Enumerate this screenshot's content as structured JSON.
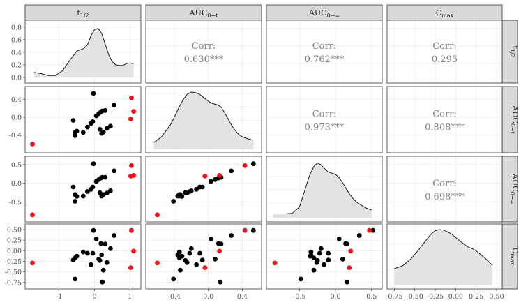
{
  "chart_data": {
    "type": "scatter-matrix",
    "variables": [
      {
        "key": "t_half",
        "label_main": "t",
        "label_sub": "1/2"
      },
      {
        "key": "auc_0_t",
        "label_main": "AUC",
        "label_sub": "0−t"
      },
      {
        "key": "auc_0_inf",
        "label_main": "AUC",
        "label_sub": "0−∞"
      },
      {
        "key": "cmax",
        "label_main": "C",
        "label_sub": "max"
      }
    ],
    "correlations": [
      {
        "row": 0,
        "col": 1,
        "label": "Corr:",
        "value": "0.630***"
      },
      {
        "row": 0,
        "col": 2,
        "label": "Corr:",
        "value": "0.762***"
      },
      {
        "row": 0,
        "col": 3,
        "label": "Corr:",
        "value": "0.295"
      },
      {
        "row": 1,
        "col": 2,
        "label": "Corr:",
        "value": "0.973***"
      },
      {
        "row": 1,
        "col": 3,
        "label": "Corr:",
        "value": "0.808***"
      },
      {
        "row": 2,
        "col": 3,
        "label": "Corr:",
        "value": "0.698***"
      }
    ],
    "axes": {
      "t_half": {
        "range": [
          -1.8,
          1.15
        ],
        "ticks": [
          -1,
          0,
          1
        ],
        "tick_labels": [
          "-1",
          "0",
          "1"
        ]
      },
      "auc_0_t": {
        "range": [
          -0.67,
          0.56
        ],
        "ticks": [
          -0.4,
          0,
          0.4
        ],
        "tick_labels": [
          "-0.4",
          "0.0",
          "0.4"
        ]
      },
      "auc_0_inf": {
        "range": [
          -0.88,
          0.57
        ],
        "ticks": [
          -0.5,
          0,
          0.5
        ],
        "tick_labels": [
          "-0.5",
          "0.0",
          "0.5"
        ]
      },
      "cmax": {
        "range": [
          -0.77,
          0.5
        ],
        "ticks": [
          -0.75,
          -0.5,
          -0.25,
          0,
          0.25,
          0.5
        ],
        "tick_labels": [
          "-0.75",
          "-0.50",
          "-0.25",
          "0.00",
          "0.25",
          "0.50"
        ]
      }
    },
    "density_axis": {
      "range": [
        0,
        0.82
      ],
      "ticks": [
        0,
        0.2,
        0.4,
        0.6,
        0.8
      ],
      "tick_labels": [
        "0.0",
        "0.2",
        "0.4",
        "0.6",
        "0.8"
      ]
    },
    "densities": {
      "t_half": {
        "x": [
          -1.7,
          -1.5,
          -1.3,
          -1.1,
          -0.9,
          -0.7,
          -0.5,
          -0.4,
          -0.3,
          -0.2,
          -0.1,
          0.0,
          0.1,
          0.2,
          0.3,
          0.4,
          0.5,
          0.6,
          0.7,
          0.8,
          0.9,
          1.0,
          1.1
        ],
        "y": [
          0.08,
          0.06,
          0.03,
          0.03,
          0.11,
          0.27,
          0.42,
          0.44,
          0.46,
          0.52,
          0.66,
          0.76,
          0.78,
          0.7,
          0.53,
          0.36,
          0.25,
          0.2,
          0.19,
          0.19,
          0.22,
          0.23,
          0.22
        ]
      },
      "auc_0_t": {
        "x": [
          -0.64,
          -0.55,
          -0.45,
          -0.4,
          -0.35,
          -0.3,
          -0.25,
          -0.2,
          -0.15,
          -0.1,
          -0.05,
          0.0,
          0.05,
          0.1,
          0.15,
          0.2,
          0.25,
          0.3,
          0.35,
          0.4,
          0.45,
          0.5,
          0.53
        ],
        "y": [
          0.12,
          0.22,
          0.42,
          0.56,
          0.72,
          0.86,
          0.96,
          1.0,
          0.99,
          0.96,
          0.9,
          0.84,
          0.8,
          0.78,
          0.74,
          0.62,
          0.48,
          0.36,
          0.27,
          0.22,
          0.19,
          0.17,
          0.16
        ]
      },
      "auc_0_inf": {
        "x": [
          -0.86,
          -0.78,
          -0.7,
          -0.6,
          -0.5,
          -0.42,
          -0.36,
          -0.3,
          -0.25,
          -0.2,
          -0.15,
          -0.1,
          -0.05,
          0.0,
          0.05,
          0.1,
          0.15,
          0.2,
          0.25,
          0.3,
          0.35,
          0.4,
          0.45,
          0.5
        ],
        "y": [
          0.08,
          0.08,
          0.08,
          0.09,
          0.2,
          0.52,
          0.76,
          0.92,
          0.98,
          0.95,
          0.88,
          0.82,
          0.8,
          0.78,
          0.72,
          0.63,
          0.52,
          0.42,
          0.34,
          0.28,
          0.24,
          0.2,
          0.17,
          0.15
        ]
      },
      "cmax": {
        "x": [
          -0.75,
          -0.65,
          -0.55,
          -0.45,
          -0.35,
          -0.3,
          -0.25,
          -0.2,
          -0.15,
          -0.1,
          -0.05,
          0.0,
          0.05,
          0.1,
          0.15,
          0.2,
          0.25,
          0.3,
          0.35,
          0.4,
          0.45
        ],
        "y": [
          0.3,
          0.35,
          0.47,
          0.64,
          0.83,
          0.92,
          0.98,
          1.0,
          0.99,
          0.96,
          0.92,
          0.86,
          0.8,
          0.74,
          0.69,
          0.66,
          0.62,
          0.56,
          0.5,
          0.43,
          0.36
        ]
      }
    },
    "points": [
      {
        "t_half": -1.75,
        "auc_0_t": -0.6,
        "auc_0_inf": -0.84,
        "cmax": -0.29,
        "highlight": true
      },
      {
        "t_half": 1.04,
        "auc_0_t": 0.43,
        "auc_0_inf": 0.47,
        "cmax": 0.48,
        "highlight": true
      },
      {
        "t_half": 1.1,
        "auc_0_t": 0.13,
        "auc_0_inf": 0.21,
        "cmax": -0.01,
        "highlight": true
      },
      {
        "t_half": 1.02,
        "auc_0_t": -0.04,
        "auc_0_inf": 0.19,
        "cmax": -0.4,
        "highlight": true
      },
      {
        "t_half": -0.03,
        "auc_0_t": 0.53,
        "auc_0_inf": 0.52,
        "cmax": 0.48,
        "highlight": false
      },
      {
        "t_half": 0.55,
        "auc_0_t": 0.27,
        "auc_0_inf": 0.33,
        "cmax": 0.36,
        "highlight": false
      },
      {
        "t_half": -0.55,
        "auc_0_t": -0.41,
        "auc_0_inf": -0.48,
        "cmax": -0.67,
        "highlight": false
      },
      {
        "t_half": -0.6,
        "auc_0_t": -0.07,
        "auc_0_inf": -0.1,
        "cmax": -0.22,
        "highlight": false
      },
      {
        "t_half": -0.5,
        "auc_0_t": -0.31,
        "auc_0_inf": -0.35,
        "cmax": -0.13,
        "highlight": false
      },
      {
        "t_half": -0.55,
        "auc_0_t": -0.34,
        "auc_0_inf": -0.3,
        "cmax": -0.17,
        "highlight": false
      },
      {
        "t_half": -0.32,
        "auc_0_t": -0.34,
        "auc_0_inf": -0.34,
        "cmax": -0.03,
        "highlight": false
      },
      {
        "t_half": -0.2,
        "auc_0_t": -0.22,
        "auc_0_inf": -0.22,
        "cmax": -0.06,
        "highlight": false
      },
      {
        "t_half": -0.1,
        "auc_0_t": -0.14,
        "auc_0_inf": -0.16,
        "cmax": -0.33,
        "highlight": false
      },
      {
        "t_half": -0.05,
        "auc_0_t": -0.1,
        "auc_0_inf": -0.1,
        "cmax": -0.06,
        "highlight": false
      },
      {
        "t_half": 0.05,
        "auc_0_t": 0.03,
        "auc_0_inf": 0.05,
        "cmax": 0.28,
        "highlight": false
      },
      {
        "t_half": 0.12,
        "auc_0_t": 0.08,
        "auc_0_inf": 0.1,
        "cmax": -0.2,
        "highlight": false
      },
      {
        "t_half": 0.18,
        "auc_0_t": 0.12,
        "auc_0_inf": 0.14,
        "cmax": 0.17,
        "highlight": false
      },
      {
        "t_half": 0.22,
        "auc_0_t": 0.14,
        "auc_0_inf": 0.16,
        "cmax": -0.74,
        "highlight": false
      },
      {
        "t_half": 0.3,
        "auc_0_t": 0.15,
        "auc_0_inf": 0.16,
        "cmax": 0.16,
        "highlight": false
      },
      {
        "t_half": 0.35,
        "auc_0_t": -0.25,
        "auc_0_inf": -0.26,
        "cmax": -0.28,
        "highlight": false
      },
      {
        "t_half": 0.25,
        "auc_0_t": -0.33,
        "auc_0_inf": -0.3,
        "cmax": -0.46,
        "highlight": false
      },
      {
        "t_half": 0.2,
        "auc_0_t": -0.36,
        "auc_0_inf": -0.34,
        "cmax": -0.1,
        "highlight": false
      },
      {
        "t_half": 0.45,
        "auc_0_t": -0.2,
        "auc_0_inf": -0.2,
        "cmax": 0.05,
        "highlight": false
      },
      {
        "t_half": 0.15,
        "auc_0_t": -0.27,
        "auc_0_inf": -0.25,
        "cmax": -0.23,
        "highlight": false
      }
    ]
  },
  "colors": {
    "strip_fill": "#d9d9d9",
    "strip_border": "#333333",
    "panel_border": "#333333",
    "grid": "#ebebeb",
    "point": "#000000",
    "highlight_point": "#e8141b",
    "density_fill": "#e3e3e3",
    "density_line": "#1a1a1a",
    "corr_text": "#808080",
    "tick_text": "#4d4d4d"
  }
}
